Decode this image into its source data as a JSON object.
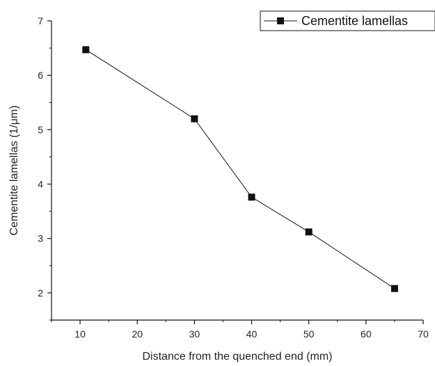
{
  "chart_data": {
    "type": "line",
    "x": [
      11,
      30,
      40,
      50,
      65
    ],
    "series": [
      {
        "name": "Cementite lamellas",
        "values": [
          6.47,
          5.2,
          3.76,
          3.12,
          2.08
        ],
        "marker": "square",
        "color": "#111111"
      }
    ],
    "xlabel": "Distance from the quenched end (mm)",
    "ylabel": "Cementite lamellas (1/μm)",
    "xlim": [
      5,
      70
    ],
    "ylim": [
      1.5,
      7
    ],
    "xticks": [
      10,
      20,
      30,
      40,
      50,
      60,
      70
    ],
    "yticks": [
      2,
      3,
      4,
      5,
      6,
      7
    ],
    "grid": false,
    "legend_position": "top-right"
  }
}
